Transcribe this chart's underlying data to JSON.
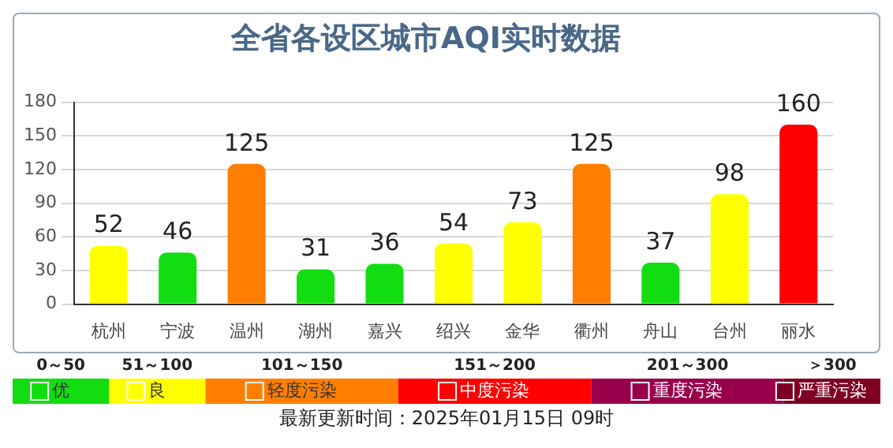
{
  "chart_data": {
    "type": "bar",
    "title": "全省各设区城市AQI实时数据",
    "categories": [
      "杭州",
      "宁波",
      "温州",
      "湖州",
      "嘉兴",
      "绍兴",
      "金华",
      "衢州",
      "舟山",
      "台州",
      "丽水"
    ],
    "series": [
      {
        "name": "优",
        "color": "#11dd11",
        "values": [
          null,
          46,
          null,
          31,
          36,
          null,
          null,
          null,
          37,
          null,
          null
        ]
      },
      {
        "name": "良",
        "color": "#ffff00",
        "values": [
          52,
          null,
          null,
          null,
          null,
          54,
          73,
          null,
          null,
          98,
          null
        ]
      },
      {
        "name": "轻度污染",
        "color": "#ff7e00",
        "values": [
          null,
          null,
          125,
          null,
          null,
          null,
          null,
          125,
          null,
          null,
          null
        ]
      },
      {
        "name": "中度污染",
        "color": "#ff0000",
        "values": [
          null,
          null,
          null,
          null,
          null,
          null,
          null,
          null,
          null,
          null,
          160
        ]
      },
      {
        "name": "重度污染",
        "color": "#99004c",
        "values": [
          null,
          null,
          null,
          null,
          null,
          null,
          null,
          null,
          null,
          null,
          null
        ]
      },
      {
        "name": "严重污染",
        "color": "#7e0023",
        "values": [
          null,
          null,
          null,
          null,
          null,
          null,
          null,
          null,
          null,
          null,
          null
        ]
      }
    ],
    "stacked": true,
    "ylim": [
      0,
      180
    ],
    "yticks": [
      0,
      30,
      60,
      90,
      120,
      150,
      180
    ],
    "grid": "y",
    "data_labels": true,
    "legend": "bottom",
    "annotations": [
      "0～50",
      "51～100",
      "101～150",
      "151～200",
      "201～300",
      "＞300",
      "最新更新时间：2025年01月15日 09时"
    ]
  }
}
